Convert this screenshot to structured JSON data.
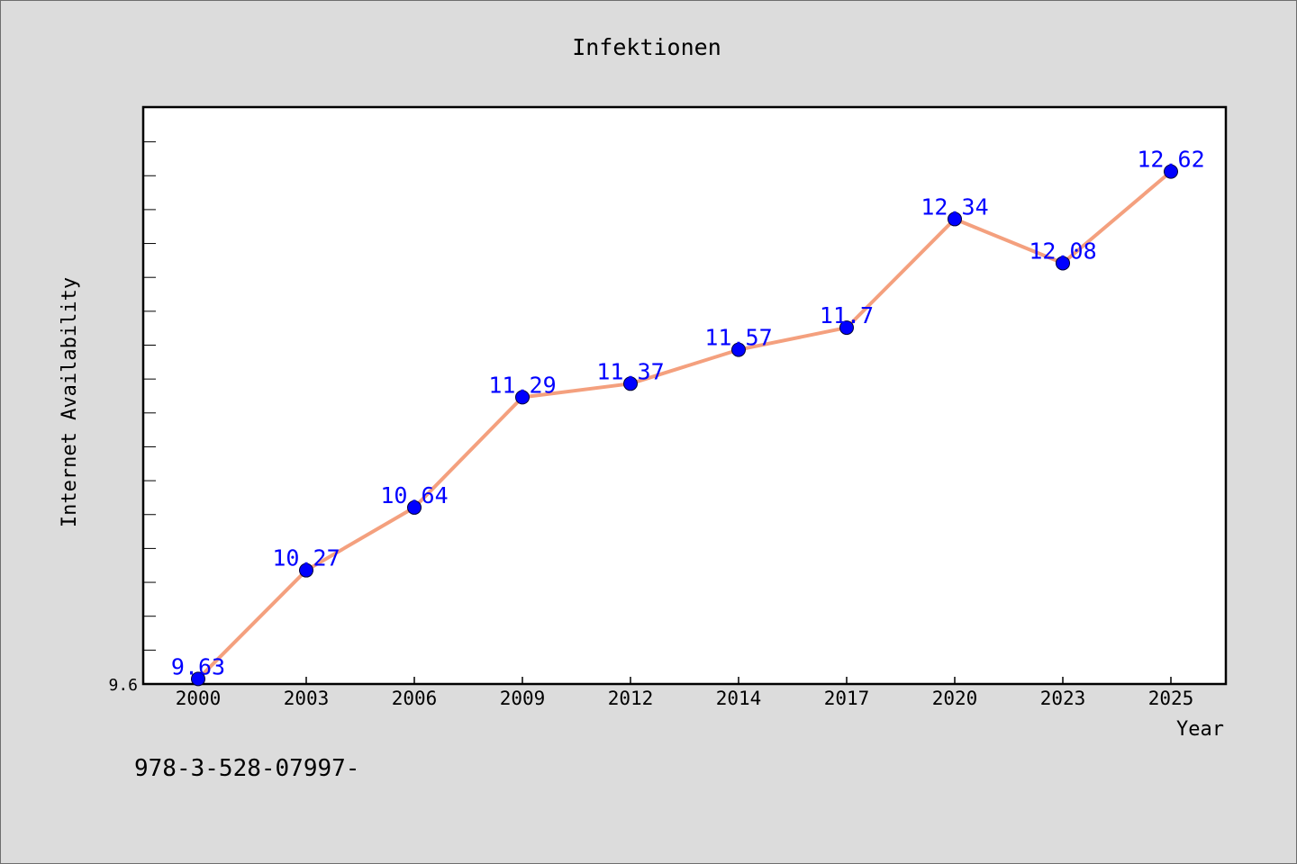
{
  "chart_data": {
    "type": "line",
    "title": "Infektionen",
    "xlabel": "Year",
    "ylabel": "Internet Availability",
    "categories": [
      "2000",
      "2003",
      "2006",
      "2009",
      "2012",
      "2014",
      "2017",
      "2020",
      "2023",
      "2025"
    ],
    "series": [
      {
        "values": [
          9.63,
          10.27,
          10.64,
          11.29,
          11.37,
          11.57,
          11.7,
          12.34,
          12.08,
          12.62
        ],
        "labels": [
          "9.63",
          "10.27",
          "10.64",
          "11.29",
          "11.37",
          "11.57",
          "11.7",
          "12.34",
          "12.08",
          "12.62"
        ],
        "line_color": "#f4a07e",
        "marker_color": "#0000ff",
        "label_color": "#0000ff"
      }
    ],
    "ylim": [
      9.6,
      13.0
    ],
    "y_tick_labels": [
      "9.6"
    ],
    "grid": false,
    "legend": "none",
    "plot_background": "#ffffff",
    "figure_background": "#dcdcdc"
  },
  "footer": {
    "text": "978-3-528-07997-"
  }
}
